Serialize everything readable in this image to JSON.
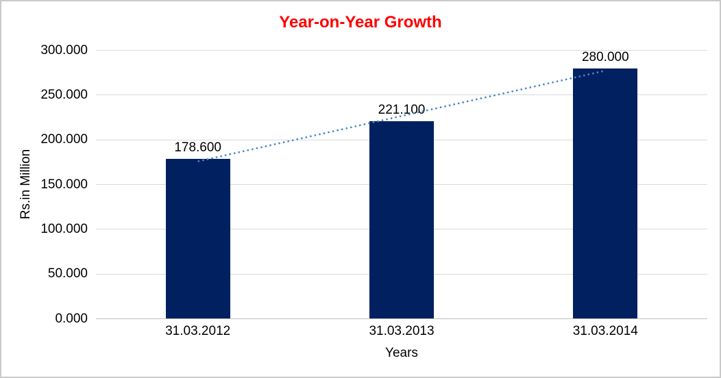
{
  "window": {
    "background_color": "#FFFFFF",
    "border_color": "#C9C9C9"
  },
  "chart_data": {
    "type": "bar",
    "title": "Year-on-Year Growth",
    "title_color": "#FF0000",
    "categories": [
      "31.03.2012",
      "31.03.2013",
      "31.03.2014"
    ],
    "values": [
      178.6,
      221.1,
      280.0
    ],
    "value_labels": [
      "178.600",
      "221.100",
      "280.000"
    ],
    "xlabel": "Years",
    "ylabel": "Rs.in Million",
    "ylim": [
      0,
      300
    ],
    "ytick_step": 50,
    "ytick_labels": [
      "0.000",
      "50.000",
      "100.000",
      "150.000",
      "200.000",
      "250.000",
      "300.000"
    ],
    "grid": true,
    "legend": "none",
    "bar_color": "#002060",
    "gridline_color": "#D9D9D9",
    "axis_line_color": "#C0C0C0",
    "label_color": "#000000",
    "trendline": {
      "type": "linear",
      "style": "dotted",
      "color": "#4A86C6"
    }
  }
}
